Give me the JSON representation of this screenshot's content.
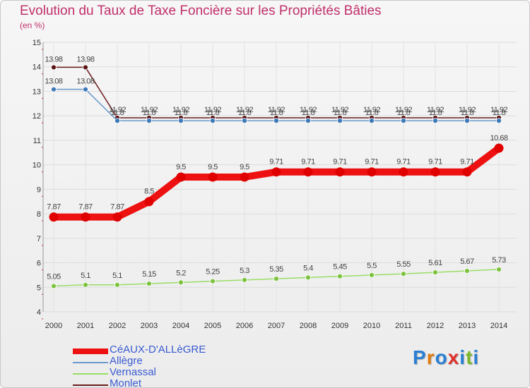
{
  "header": {
    "title": "Evolution du Taux de Taxe Foncière sur les Propriétés Bâties",
    "unit": "(en %)"
  },
  "chart_data": {
    "type": "line",
    "title": "Evolution du Taux de Taxe Foncière sur les Propriétés Bâties",
    "ylabel": "(en %)",
    "xlabel": "",
    "ylim": [
      4,
      15
    ],
    "yticks": [
      4,
      5,
      6,
      7,
      8,
      9,
      10,
      11,
      12,
      13,
      14,
      15
    ],
    "categories": [
      "2000",
      "2001",
      "2002",
      "2003",
      "2004",
      "2005",
      "2006",
      "2007",
      "2008",
      "2009",
      "2010",
      "2011",
      "2012",
      "2013",
      "2014"
    ],
    "series": [
      {
        "name": "Monlet",
        "color": "#6b1d1d",
        "values": [
          13.98,
          13.98,
          11.92,
          11.92,
          11.92,
          11.92,
          11.92,
          11.92,
          11.92,
          11.92,
          11.92,
          11.92,
          11.92,
          11.92,
          11.92
        ],
        "labels": [
          "13.98",
          "13.98",
          "11.92",
          "11.92",
          "11.92",
          "11.92",
          "11.92",
          "11.92",
          "11.92",
          "11.92",
          "11.92",
          "11.92",
          "11.92",
          "11.92",
          "11.92"
        ]
      },
      {
        "name": "Allègre",
        "color": "#6699cc",
        "values": [
          13.08,
          13.08,
          11.8,
          11.8,
          11.8,
          11.8,
          11.8,
          11.8,
          11.8,
          11.8,
          11.8,
          11.8,
          11.8,
          11.8,
          11.8
        ],
        "labels": [
          "13.08",
          "13.08",
          "11.8",
          "11.8",
          "11.8",
          "11.8",
          "11.8",
          "11.8",
          "11.8",
          "11.8",
          "11.8",
          "11.8",
          "11.8",
          "11.8",
          "11.8"
        ]
      },
      {
        "name": "Vernassal",
        "color": "#99dd66",
        "values": [
          5.05,
          5.1,
          5.1,
          5.15,
          5.2,
          5.25,
          5.3,
          5.35,
          5.4,
          5.45,
          5.5,
          5.55,
          5.61,
          5.67,
          5.73
        ],
        "labels": [
          "5.05",
          "5.1",
          "5.1",
          "5.15",
          "5.2",
          "5.25",
          "5.3",
          "5.35",
          "5.4",
          "5.45",
          "5.5",
          "5.55",
          "5.61",
          "5.67",
          "5.73"
        ]
      },
      {
        "name": "CéAUX-D'ALLèGRE",
        "color": "#ee1111",
        "values": [
          7.87,
          7.87,
          7.87,
          8.5,
          9.5,
          9.5,
          9.5,
          9.71,
          9.71,
          9.71,
          9.71,
          9.71,
          9.71,
          9.71,
          10.68
        ],
        "labels": [
          "7.87",
          "7.87",
          "7.87",
          "8.5",
          "9.5",
          "9.5",
          "9.5",
          "9.71",
          "9.71",
          "9.71",
          "9.71",
          "9.71",
          "9.71",
          "9.71",
          "10.68"
        ]
      }
    ],
    "legend": [
      "CéAUX-D'ALLèGRE",
      "Allègre",
      "Vernassal",
      "Monlet"
    ],
    "legend_position": "bottom-left"
  },
  "legend": {
    "items": [
      {
        "label": "CéAUX-D'ALLèGRE",
        "color": "#ee1111"
      },
      {
        "label": "Allègre",
        "color": "#6699cc"
      },
      {
        "label": "Vernassal",
        "color": "#99dd66"
      },
      {
        "label": "Monlet",
        "color": "#6b1d1d"
      }
    ]
  },
  "logo": {
    "letters": [
      "P",
      "r",
      "o",
      "x",
      "i",
      "t",
      "i"
    ],
    "colors": [
      "#2a7fd4",
      "#e07a10",
      "#2a7fd4",
      "#e0302a",
      "#2a7fd4",
      "#7ab82a",
      "#2a7fd4"
    ]
  }
}
